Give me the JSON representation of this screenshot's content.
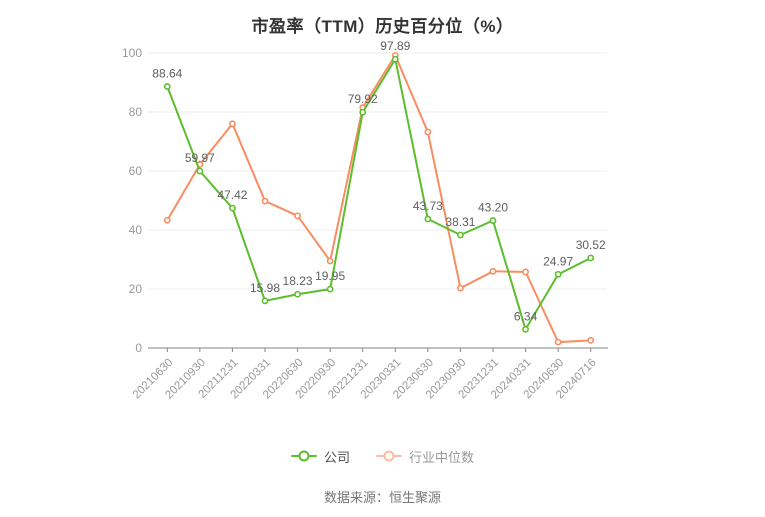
{
  "title": "市盈率（TTM）历史百分位（%）",
  "source_note": "数据来源：恒生聚源",
  "legend": {
    "items": [
      {
        "label": "公司",
        "marker_color": "#5cbe2d",
        "text_color": "#4d4d4d"
      },
      {
        "label": "行业中位数",
        "marker_color": "#fbbda2",
        "text_color": "#999999"
      }
    ]
  },
  "colors": {
    "company_line": "#5cbe2d",
    "industry_line": "#f98d60",
    "grid_line": "#e9eef5",
    "axis_line": "#82868e",
    "axis_label": "#999999",
    "data_label": "#5f5f5f",
    "title": "#333333",
    "source": "#757575",
    "background": "#ffffff",
    "marker_fill": "#ffffff"
  },
  "chart_data": {
    "type": "line",
    "categories": [
      "20210630",
      "20210930",
      "20211231",
      "20220331",
      "20220630",
      "20220930",
      "20221231",
      "20230331",
      "20230630",
      "20230930",
      "20231231",
      "20240331",
      "20240630",
      "20240716"
    ],
    "series": [
      {
        "name": "公司",
        "color": "#5cbe2d",
        "point_labels": true,
        "values": [
          88.64,
          59.97,
          47.42,
          15.98,
          18.23,
          19.95,
          79.92,
          97.89,
          43.73,
          38.31,
          43.2,
          6.34,
          24.97,
          30.52
        ]
      },
      {
        "name": "行业中位数",
        "color": "#f98d60",
        "point_labels": false,
        "values": [
          43.3,
          62.2,
          76.0,
          49.8,
          44.8,
          29.5,
          81.5,
          99.2,
          73.2,
          20.3,
          26.0,
          25.8,
          2.0,
          2.6
        ]
      }
    ],
    "title": "市盈率（TTM）历史百分位（%）",
    "xlabel": "",
    "ylabel": "",
    "ylim": [
      0,
      100
    ],
    "yticks": [
      0,
      20,
      40,
      60,
      80,
      100
    ],
    "grid": true,
    "x_label_rotation": 45,
    "legend_position": "bottom"
  }
}
